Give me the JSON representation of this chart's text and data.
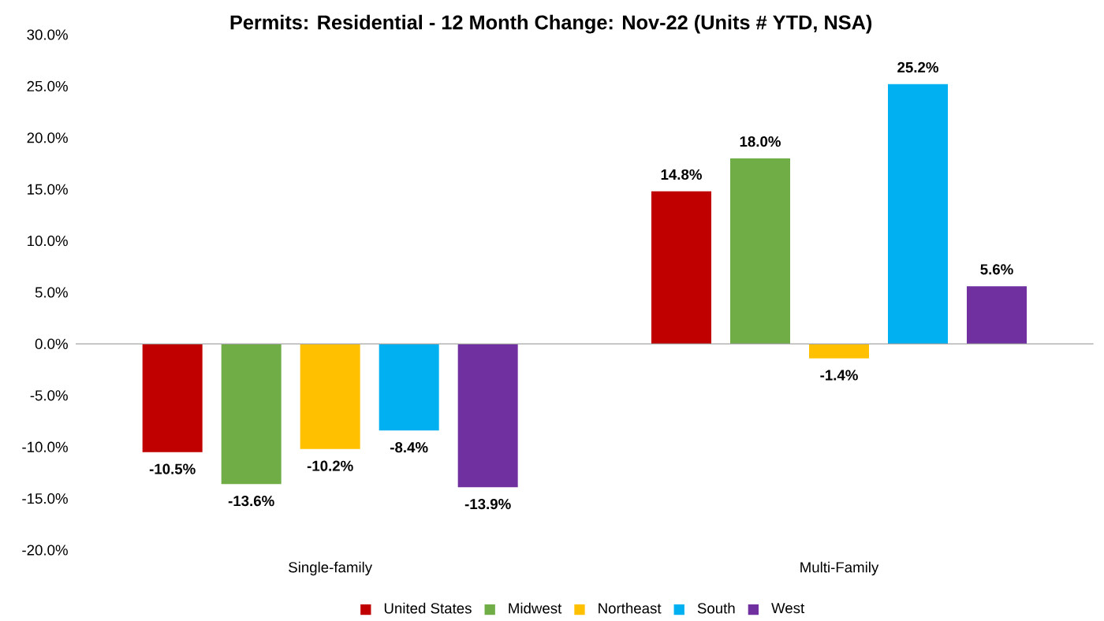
{
  "chart_data": {
    "type": "bar",
    "title": "Permits: Residential - 12 Month Change:  Nov-22 (Units # YTD, NSA)",
    "categories": [
      "Single-family",
      "Multi-Family"
    ],
    "series": [
      {
        "name": "United States",
        "color": "#c00000",
        "values": [
          -10.5,
          14.8
        ],
        "value_labels": [
          "-10.5%",
          "14.8%"
        ]
      },
      {
        "name": "Midwest",
        "color": "#70ad47",
        "values": [
          -13.6,
          18.0
        ],
        "value_labels": [
          "-13.6%",
          "18.0%"
        ]
      },
      {
        "name": "Northeast",
        "color": "#ffc000",
        "values": [
          -10.2,
          -1.4
        ],
        "value_labels": [
          "-10.2%",
          "-1.4%"
        ]
      },
      {
        "name": "South",
        "color": "#00b0f0",
        "values": [
          -8.4,
          25.2
        ],
        "value_labels": [
          "-8.4%",
          "25.2%"
        ]
      },
      {
        "name": "West",
        "color": "#7030a0",
        "values": [
          -13.9,
          5.6
        ],
        "value_labels": [
          "-13.9%",
          "5.6%"
        ]
      }
    ],
    "ylim": [
      -20,
      30
    ],
    "yticks": [
      {
        "value": -20,
        "label": "-20.0%"
      },
      {
        "value": -15,
        "label": "-15.0%"
      },
      {
        "value": -10,
        "label": "-10.0%"
      },
      {
        "value": -5,
        "label": "-5.0%"
      },
      {
        "value": 0,
        "label": "0.0%"
      },
      {
        "value": 5,
        "label": "5.0%"
      },
      {
        "value": 10,
        "label": "10.0%"
      },
      {
        "value": 15,
        "label": "15.0%"
      },
      {
        "value": 20,
        "label": "20.0%"
      },
      {
        "value": 25,
        "label": "25.0%"
      },
      {
        "value": 30,
        "label": "30.0%"
      }
    ],
    "ref_lines": [
      {
        "axis": "y",
        "value": 0,
        "color": "#a6a6a6"
      }
    ],
    "legend": "bottom",
    "grid": false
  }
}
